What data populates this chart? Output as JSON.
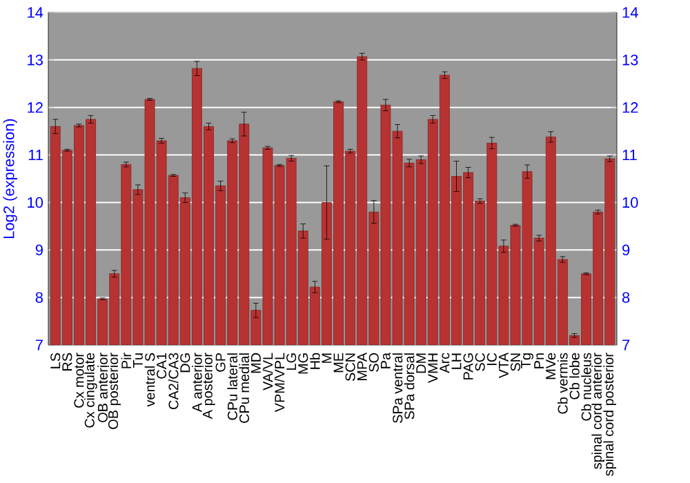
{
  "chart_data": {
    "type": "bar",
    "ylabel": "Log2 (expression)",
    "categories": [
      "LS",
      "RS",
      "Cx motor",
      "Cx cingulate",
      "OB anterior",
      "OB posterior",
      "Pir",
      "Tu",
      "ventral S",
      "CA1",
      "CA2/CA3",
      "DG",
      "A anterior",
      "A posterior",
      "GP",
      "CPu lateral",
      "CPu medial",
      "MD",
      "VA/VL",
      "VPM/VPL",
      "LG",
      "MG",
      "Hb",
      "M",
      "ME",
      "SCN",
      "MPA",
      "SO",
      "Pa",
      "SPa ventral",
      "SPa dorsal",
      "DM",
      "VMH",
      "Arc",
      "LH",
      "PAG",
      "SC",
      "IC",
      "VTA",
      "SN",
      "Tg",
      "Pn",
      "MVe",
      "Cb vermis",
      "Cb lobe",
      "Cb nucleus",
      "spinal cord anterior",
      "spinal cord posterior"
    ],
    "values": [
      11.6,
      11.1,
      11.62,
      11.75,
      7.97,
      8.5,
      10.8,
      10.27,
      12.17,
      11.3,
      10.57,
      10.1,
      12.82,
      11.6,
      10.35,
      11.3,
      11.65,
      7.73,
      11.15,
      10.78,
      10.93,
      9.4,
      8.22,
      10.0,
      12.12,
      11.08,
      13.07,
      9.8,
      12.05,
      11.5,
      10.83,
      10.9,
      11.75,
      12.68,
      10.55,
      10.63,
      10.03,
      11.25,
      9.08,
      9.52,
      10.65,
      9.25,
      11.38,
      8.8,
      7.2,
      8.5,
      9.8,
      10.92
    ],
    "errors": [
      0.15,
      0.02,
      0.03,
      0.08,
      0.02,
      0.07,
      0.05,
      0.1,
      0.02,
      0.05,
      0.02,
      0.1,
      0.15,
      0.07,
      0.1,
      0.04,
      0.25,
      0.15,
      0.03,
      0.02,
      0.06,
      0.15,
      0.12,
      0.77,
      0.02,
      0.04,
      0.07,
      0.24,
      0.12,
      0.14,
      0.08,
      0.08,
      0.08,
      0.07,
      0.32,
      0.11,
      0.05,
      0.12,
      0.13,
      0.02,
      0.14,
      0.06,
      0.11,
      0.06,
      0.04,
      0.02,
      0.04,
      0.06
    ],
    "color": "#b83232",
    "ylim": [
      7,
      14
    ],
    "yticks": [
      7,
      8,
      9,
      10,
      11,
      12,
      13,
      14
    ],
    "y2lim": [
      7,
      14
    ],
    "y2ticks": [
      7,
      8,
      9,
      10,
      11,
      12,
      13,
      14
    ],
    "grid": "y"
  }
}
